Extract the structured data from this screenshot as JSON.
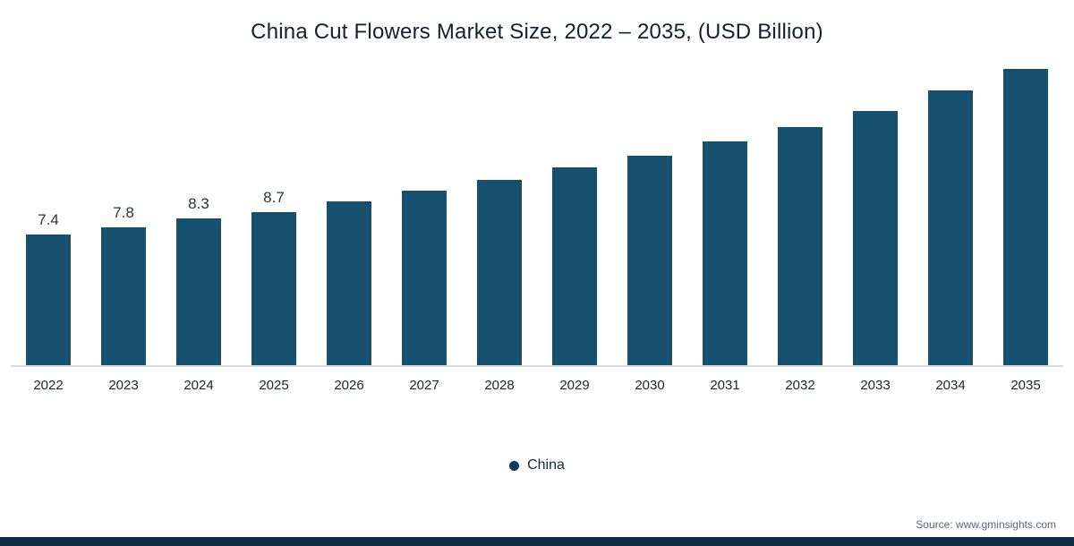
{
  "title": "China Cut Flowers Market Size, 2022 – 2035, (USD Billion)",
  "legend": {
    "label": "China"
  },
  "source": "Source: www.gminsights.com",
  "colors": {
    "bar": "#174f6e",
    "legend_dot": "#123a5e",
    "footer_bar": "#0e2a44",
    "axis_line": "#d9dcdf"
  },
  "chart_data": {
    "type": "bar",
    "title": "China Cut Flowers Market Size, 2022 – 2035, (USD Billion)",
    "series_name": "China",
    "categories": [
      "2022",
      "2023",
      "2024",
      "2025",
      "2026",
      "2027",
      "2028",
      "2029",
      "2030",
      "2031",
      "2032",
      "2033",
      "2034",
      "2035"
    ],
    "values": [
      7.4,
      7.8,
      8.3,
      8.7,
      9.3,
      9.9,
      10.5,
      11.2,
      11.9,
      12.7,
      13.5,
      14.4,
      15.6,
      16.8
    ],
    "data_labels": [
      "7.4",
      "7.8",
      "8.3",
      "8.7",
      "",
      "",
      "",
      "",
      "",
      "",
      "",
      "",
      "",
      ""
    ],
    "xlabel": "",
    "ylabel": "",
    "ylim": [
      0,
      17.5
    ],
    "grid": false,
    "legend_position": "bottom",
    "value_axis_hidden": true
  }
}
